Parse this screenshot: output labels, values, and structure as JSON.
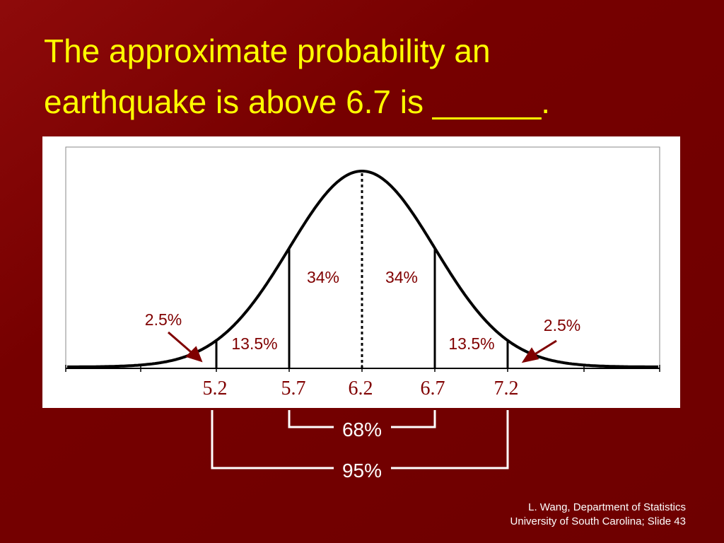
{
  "title": {
    "lines": [
      "The approximate probability an",
      "earthquake is above 6.7 is ______."
    ]
  },
  "diagram": {
    "x_labels": [
      "5.2",
      "5.7",
      "6.2",
      "6.7",
      "7.2"
    ],
    "region_labels": {
      "inner_left": "34%",
      "inner_right": "34%",
      "middle_left": "13.5%",
      "middle_right": "13.5%",
      "tail_left": "2.5%",
      "tail_right": "2.5%"
    },
    "brackets": [
      "68%",
      "95%"
    ]
  },
  "footer": {
    "lines": [
      "L. Wang, Department of Statistics",
      "University of South Carolina; Slide 43"
    ]
  }
}
